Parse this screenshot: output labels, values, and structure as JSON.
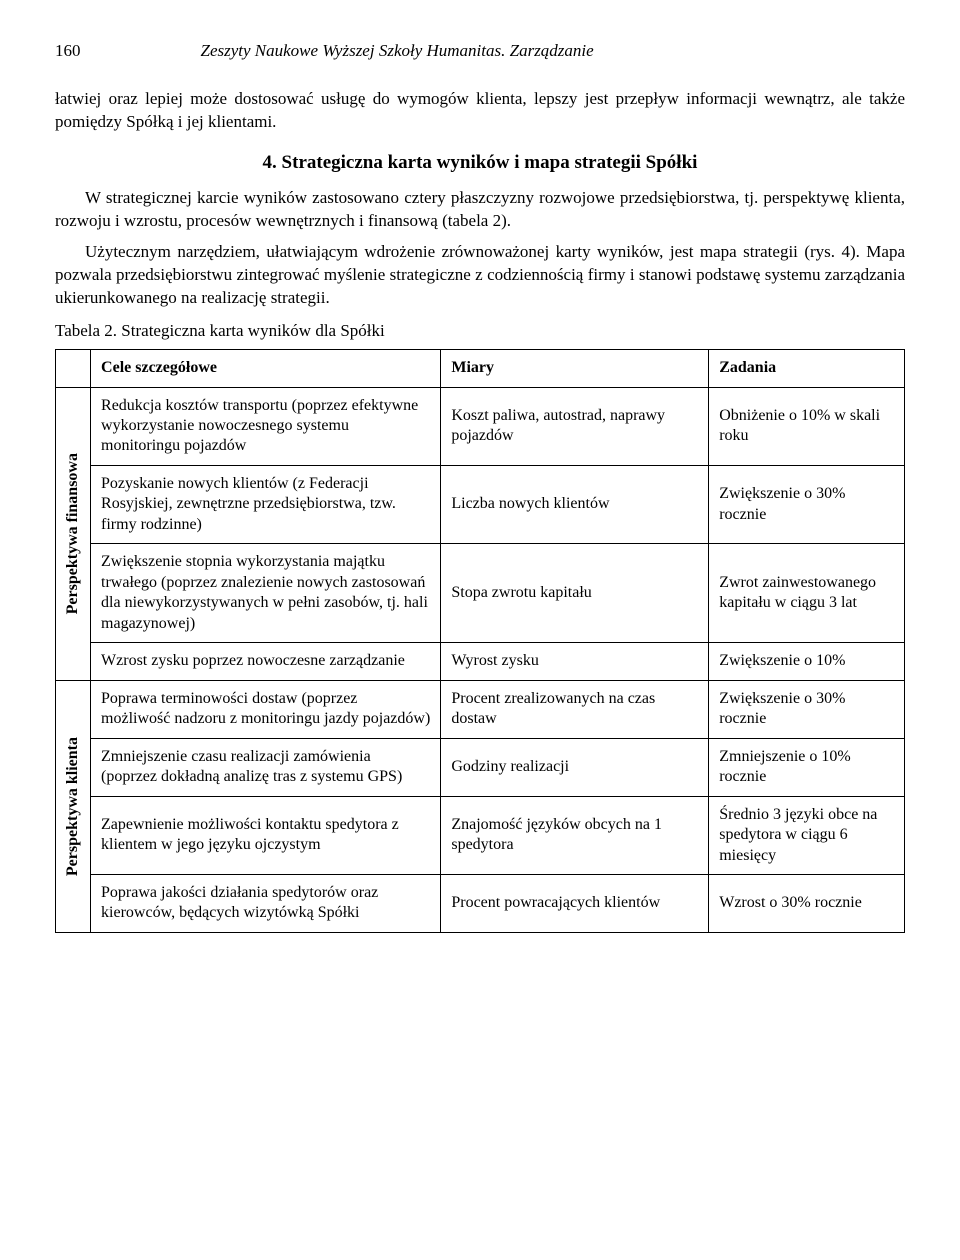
{
  "page": {
    "number": "160",
    "journal": "Zeszyty Naukowe Wyższej Szkoły Humanitas. Zarządzanie"
  },
  "intro_tail": "łatwiej oraz lepiej może dostosować usługę do wymogów klienta, lepszy jest przepływ informacji wewnątrz, ale także pomiędzy Spółką i jej klientami.",
  "section_heading": "4. Strategiczna karta wyników i mapa strategii Spółki",
  "para1": "W strategicznej karcie wyników zastosowano cztery płaszczyzny rozwojowe przedsiębiorstwa, tj. perspektywę klienta, rozwoju i wzrostu, procesów wewnętrznych i finansową (tabela 2).",
  "para2": "Użytecznym narzędziem, ułatwiającym wdrożenie zrównoważonej karty wyników, jest mapa strategii (rys. 4). Mapa pozwala przedsiębiorstwu zintegrować myślenie strategiczne z codziennością firmy i  stanowi podstawę systemu zarządzania ukierunkowanego na realizację strategii.",
  "table": {
    "caption": "Tabela 2. Strategiczna karta wyników dla Spółki",
    "headers": {
      "objectives": "Cele szczegółowe",
      "measures": "Miary",
      "tasks": "Zadania"
    },
    "groups": [
      {
        "label": "Perspektywa finansowa",
        "rows": [
          {
            "objective": "Redukcja kosztów transportu (poprzez efektywne wykorzystanie nowoczesnego systemu monitoringu pojazdów",
            "measure": "Koszt paliwa, autostrad, naprawy pojazdów",
            "task": "Obniżenie o 10% w skali roku"
          },
          {
            "objective": "Pozyskanie nowych klientów (z Federacji Rosyjskiej, zewnętrzne przedsiębiorstwa, tzw. firmy rodzinne)",
            "measure": "Liczba nowych klientów",
            "task": "Zwiększenie o 30% rocznie"
          },
          {
            "objective": "Zwiększenie stopnia wykorzystania majątku trwałego (poprzez znalezienie nowych zastosowań dla niewykorzystywanych w pełni zasobów, tj. hali magazynowej)",
            "measure": "Stopa zwrotu kapitału",
            "task": "Zwrot zainwestowanego kapitału w ciągu 3 lat"
          },
          {
            "objective": "Wzrost zysku poprzez nowoczesne zarządzanie",
            "measure": "Wyrost zysku",
            "task": "Zwiększenie o 10%"
          }
        ]
      },
      {
        "label": "Perspektywa klienta",
        "rows": [
          {
            "objective": "Poprawa terminowości dostaw (poprzez możliwość nadzoru z monitoringu jazdy pojazdów)",
            "measure": "Procent zrealizowanych na czas dostaw",
            "task": "Zwiększenie o 30% rocznie"
          },
          {
            "objective": "Zmniejszenie czasu realizacji zamówienia (poprzez dokładną analizę tras z systemu GPS)",
            "measure": "Godziny realizacji",
            "task": "Zmniejszenie o 10% rocznie"
          },
          {
            "objective": "Zapewnienie możliwości kontaktu spedytora z klientem w jego języku ojczystym",
            "measure": "Znajomość języków obcych na 1 spedytora",
            "task": "Średnio 3 języki obce na spedytora w ciągu 6 miesięcy"
          },
          {
            "objective": "Poprawa jakości działania spedytorów oraz kierowców, będących wizytówką Spółki",
            "measure": "Procent powracających klientów",
            "task": "Wzrost o 30% rocznie"
          }
        ]
      }
    ]
  }
}
